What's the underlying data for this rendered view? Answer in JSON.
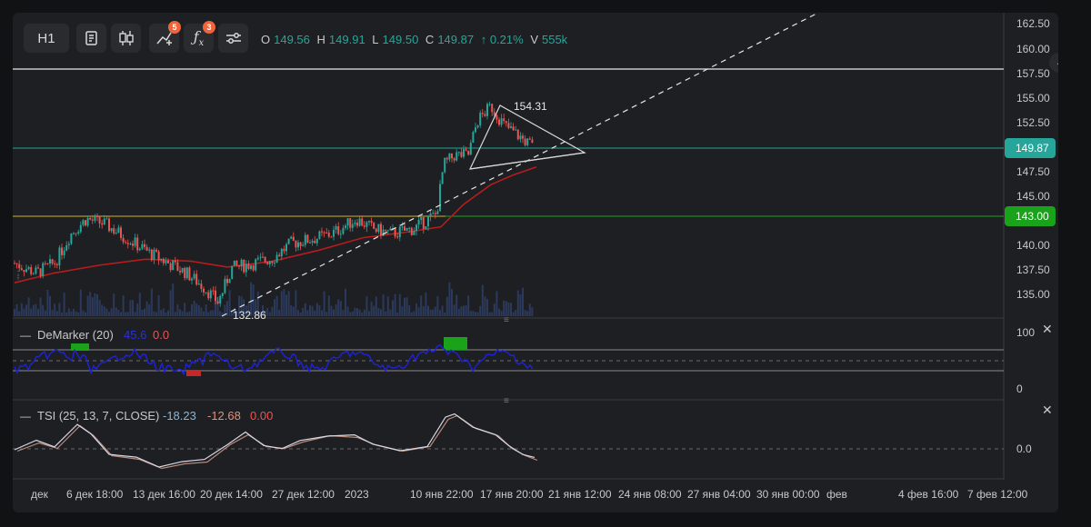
{
  "toolbar": {
    "interval": "H1",
    "indicators_badge": "5",
    "fx_badge": "3",
    "tools": [
      {
        "icon": "notes-icon"
      },
      {
        "icon": "candles-icon"
      },
      {
        "icon": "indicators-icon"
      },
      {
        "icon": "fx-icon"
      },
      {
        "icon": "settings-sliders-icon"
      }
    ]
  },
  "ohlc": {
    "o_label": "O",
    "o": "149.56",
    "h_label": "H",
    "h": "149.91",
    "l_label": "L",
    "l": "149.50",
    "c_label": "C",
    "c": "149.87",
    "change": "↑ 0.21%",
    "v_label": "V",
    "v": "555k"
  },
  "price_axis": {
    "ticks": [
      "162.50",
      "160.00",
      "157.50",
      "155.00",
      "152.50",
      "147.50",
      "145.00",
      "140.00",
      "137.50",
      "135.00"
    ],
    "current_price": "149.87",
    "level_price": "143.00"
  },
  "annotations": {
    "high_label": "154.31",
    "low_label": "132.86"
  },
  "demarker": {
    "title": "DeMarker (20)",
    "value": "45.6",
    "value2": "0.0",
    "axis_top": "100",
    "axis_bottom": "0"
  },
  "tsi": {
    "title": "TSI (25, 13, 7, CLOSE)",
    "v1": "-18.23",
    "v2": "-12.68",
    "v3": "0.00",
    "axis_zero": "0.0"
  },
  "time_axis": [
    "дек",
    "6 дек 18:00",
    "13 дек 16:00",
    "20 дек 14:00",
    "27 дек 12:00",
    "2023",
    "10 янв 22:00",
    "17 янв 20:00",
    "21 янв 12:00",
    "24 янв 08:00",
    "27 янв 04:00",
    "30 янв 00:00",
    "фев",
    "4 фев 16:00",
    "7 фев 12:00"
  ],
  "colors": {
    "up": "#26a69a",
    "down": "#ef5350",
    "level_red": "#d32f2f",
    "level_green": "#1aa31a",
    "ma": "#b71c1c",
    "demarker_line": "#1e22d8"
  }
}
